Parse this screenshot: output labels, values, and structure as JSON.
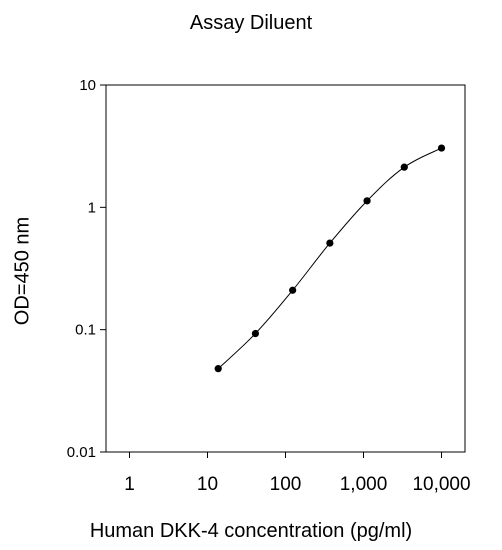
{
  "chart_data": {
    "type": "scatter",
    "title": "Assay Diluent",
    "xlabel": "Human DKK-4 concentration (pg/ml)",
    "ylabel": "OD=450 nm",
    "xscale": "log",
    "yscale": "log",
    "xlim": [
      0.5,
      20000
    ],
    "ylim": [
      0.01,
      10
    ],
    "x_ticks": [
      {
        "value": 1,
        "label": "1"
      },
      {
        "value": 10,
        "label": "10"
      },
      {
        "value": 100,
        "label": "100"
      },
      {
        "value": 1000,
        "label": "1,000"
      },
      {
        "value": 10000,
        "label": "10,000"
      }
    ],
    "y_ticks": [
      {
        "value": 0.01,
        "label": "0.01"
      },
      {
        "value": 0.1,
        "label": "0.1"
      },
      {
        "value": 1,
        "label": "1"
      },
      {
        "value": 10,
        "label": "10"
      }
    ],
    "grid": false,
    "legend": "none",
    "series": [
      {
        "x": [
          13.72,
          41.15,
          123.5,
          370.4,
          1111,
          3333,
          10000
        ],
        "y": [
          0.048,
          0.093,
          0.21,
          0.51,
          1.13,
          2.13,
          3.05
        ],
        "color": "#000000",
        "marker": "circle",
        "line": "smooth"
      }
    ]
  }
}
